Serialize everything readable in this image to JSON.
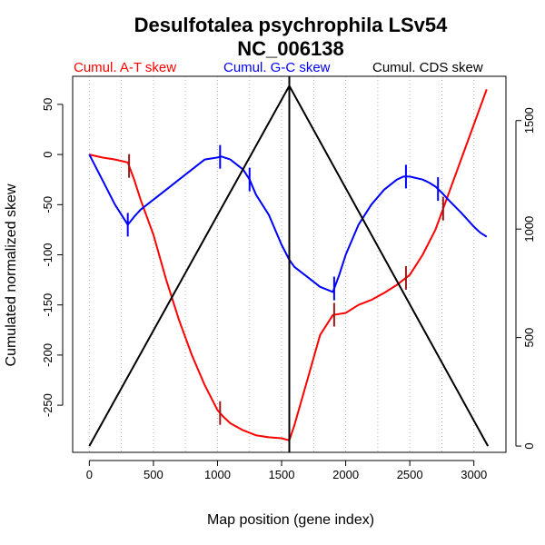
{
  "chart_data": {
    "type": "line",
    "title": "Desulfotalea psychrophila LSv54",
    "subtitle": "NC_006138",
    "xlabel": "Map position (gene index)",
    "ylabel": "Cumulated normalized skew",
    "xlim": [
      -130,
      3250
    ],
    "ylim": [
      -297,
      78
    ],
    "y2lim": [
      -29,
      1704
    ],
    "x_ticks": [
      0,
      500,
      1000,
      1500,
      2000,
      2500,
      3000
    ],
    "y_ticks": [
      -250,
      -200,
      -150,
      -100,
      -50,
      0,
      50
    ],
    "y2_ticks": [
      0,
      500,
      1000,
      1500
    ],
    "vertical_grid_x": [
      0,
      250,
      500,
      750,
      1000,
      1250,
      1500,
      1750,
      2000,
      2250,
      2500,
      2750,
      3000
    ],
    "vertical_line_x": 1560,
    "series": [
      {
        "name": "Cumul. A-T skew",
        "color": "#ff0000",
        "axis": "left",
        "x": [
          0,
          100,
          200,
          300,
          350,
          400,
          500,
          600,
          700,
          800,
          900,
          1000,
          1050,
          1100,
          1200,
          1300,
          1400,
          1500,
          1560,
          1600,
          1700,
          1800,
          1900,
          2000,
          2100,
          2200,
          2300,
          2400,
          2500,
          2600,
          2700,
          2800,
          2900,
          3000,
          3100
        ],
        "y": [
          0,
          -3,
          -5,
          -8,
          -25,
          -45,
          -80,
          -125,
          -165,
          -200,
          -230,
          -255,
          -262,
          -268,
          -275,
          -280,
          -282,
          -283,
          -285,
          -270,
          -225,
          -180,
          -160,
          -158,
          -150,
          -145,
          -138,
          -130,
          -120,
          -100,
          -75,
          -40,
          -5,
          30,
          65
        ]
      },
      {
        "name": "Cumul. G-C skew",
        "color": "#0000ff",
        "axis": "left",
        "x": [
          0,
          100,
          200,
          300,
          350,
          400,
          500,
          600,
          700,
          800,
          900,
          1000,
          1030,
          1100,
          1200,
          1250,
          1300,
          1400,
          1500,
          1560,
          1600,
          1700,
          1800,
          1900,
          1950,
          2000,
          2100,
          2200,
          2300,
          2400,
          2450,
          2500,
          2600,
          2650,
          2700,
          2750,
          2800,
          2900,
          3000,
          3050,
          3100
        ],
        "y": [
          0,
          -25,
          -50,
          -70,
          -62,
          -55,
          -45,
          -35,
          -25,
          -15,
          -5,
          -3,
          -2,
          -5,
          -15,
          -25,
          -40,
          -60,
          -90,
          -105,
          -112,
          -122,
          -132,
          -137,
          -120,
          -100,
          -70,
          -50,
          -35,
          -25,
          -22,
          -22,
          -25,
          -28,
          -32,
          -38,
          -45,
          -58,
          -72,
          -78,
          -82
        ]
      },
      {
        "name": "Cumul. CDS skew",
        "color": "#000000",
        "axis": "right",
        "x": [
          0,
          1560,
          3110
        ],
        "y": [
          0,
          1660,
          0
        ]
      }
    ],
    "markers": [
      {
        "series": "Cumul. A-T skew",
        "x": [
          310,
          1020,
          1910,
          2470,
          2760
        ]
      },
      {
        "series": "Cumul. G-C skew",
        "x": [
          300,
          1020,
          1250,
          1910,
          2470,
          2720
        ]
      }
    ]
  }
}
